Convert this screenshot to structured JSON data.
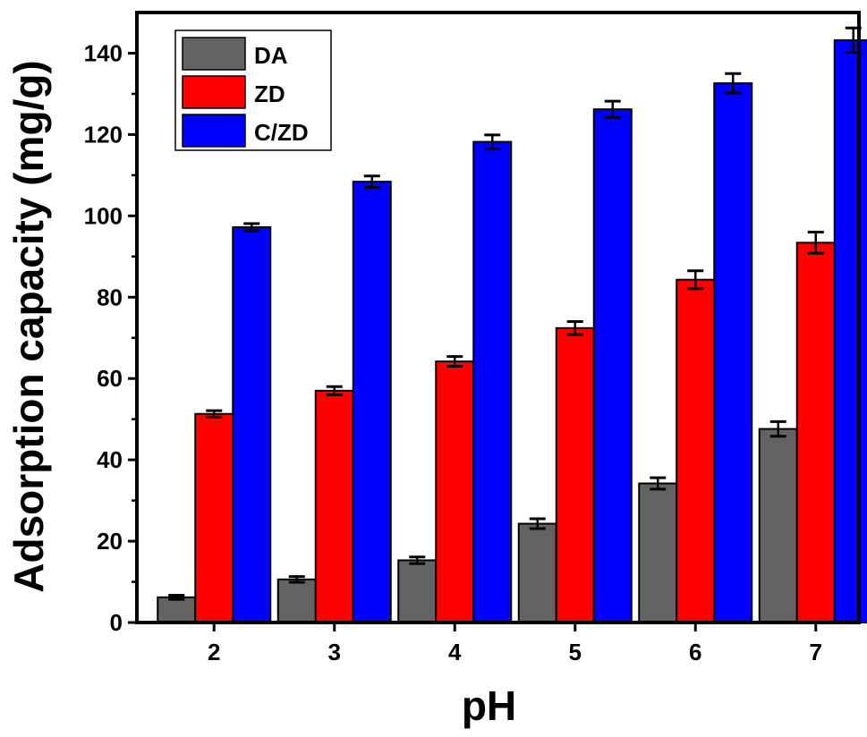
{
  "chart_data": {
    "type": "bar",
    "title": "",
    "xlabel": "pH",
    "ylabel": "Adsorption capacity (mg/g)",
    "categories": [
      "2",
      "3",
      "4",
      "5",
      "6",
      "7"
    ],
    "ylim": [
      0,
      150
    ],
    "yticks": [
      0,
      20,
      40,
      60,
      80,
      100,
      120,
      140
    ],
    "grid": false,
    "legend_position": "top-left",
    "series": [
      {
        "name": "DA",
        "color": "#636363",
        "values": [
          6.2,
          10.6,
          15.3,
          24.3,
          34.2,
          47.6
        ],
        "errors": [
          0.5,
          0.7,
          0.8,
          1.2,
          1.4,
          1.8
        ]
      },
      {
        "name": "ZD",
        "color": "#ff0000",
        "values": [
          51.3,
          57.0,
          64.2,
          72.4,
          84.3,
          93.4
        ],
        "errors": [
          0.8,
          1.0,
          1.2,
          1.6,
          2.2,
          2.6
        ]
      },
      {
        "name": "C/ZD",
        "color": "#0000ff",
        "values": [
          97.2,
          108.4,
          118.2,
          126.2,
          132.6,
          143.2
        ],
        "errors": [
          0.9,
          1.4,
          1.7,
          2.0,
          2.4,
          3.0
        ]
      }
    ]
  }
}
